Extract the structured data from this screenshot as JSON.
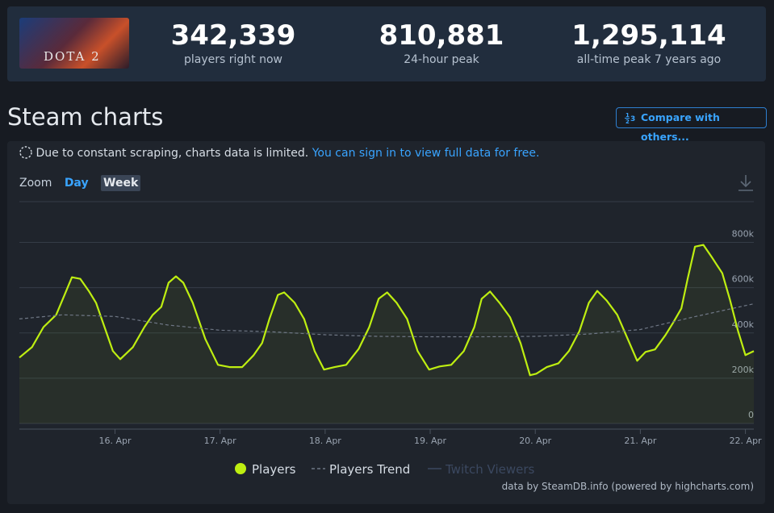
{
  "header": {
    "logo_text": "DOTA 2",
    "stats": [
      {
        "value": "342,339",
        "label": "players right now"
      },
      {
        "value": "810,881",
        "label": "24-hour peak"
      },
      {
        "value": "1,295,114",
        "label": "all-time peak 7 years ago"
      }
    ]
  },
  "section_title": "Steam charts",
  "compare_button": "Compare with others...",
  "notice": {
    "text": "Due to constant scraping, charts data is limited.",
    "link": "You can sign in to view full data for free."
  },
  "zoom": {
    "label": "Zoom",
    "options": [
      "Day",
      "Week"
    ]
  },
  "credit": "data by SteamDB.info (powered by highcharts.com)",
  "chart_data": {
    "type": "line",
    "xlim": [
      15.09,
      22.08
    ],
    "xticks": [
      {
        "value": 16,
        "label": "16. Apr"
      },
      {
        "value": 17,
        "label": "17. Apr"
      },
      {
        "value": 18,
        "label": "18. Apr"
      },
      {
        "value": 19,
        "label": "19. Apr"
      },
      {
        "value": 20,
        "label": "20. Apr"
      },
      {
        "value": 21,
        "label": "21. Apr"
      },
      {
        "value": 22,
        "label": "22. Apr"
      }
    ],
    "ylim": [
      0,
      980000
    ],
    "yticks": [
      0,
      {
        "value": 200000,
        "label": "200k"
      },
      {
        "value": 400000,
        "label": "400k"
      },
      {
        "value": 600000,
        "label": "600k"
      },
      {
        "value": 800000,
        "label": "800k"
      }
    ],
    "grid": true,
    "series": [
      {
        "name": "Players",
        "color": "#beee11",
        "x": [
          15.09,
          15.21,
          15.32,
          15.44,
          15.52,
          15.59,
          15.67,
          15.75,
          15.82,
          15.9,
          15.98,
          16.05,
          16.17,
          16.28,
          16.36,
          16.44,
          16.51,
          16.58,
          16.65,
          16.74,
          16.86,
          16.98,
          17.09,
          17.21,
          17.32,
          17.4,
          17.47,
          17.55,
          17.61,
          17.71,
          17.8,
          17.9,
          17.99,
          18.09,
          18.2,
          18.32,
          18.42,
          18.51,
          18.59,
          18.68,
          18.78,
          18.88,
          18.99,
          19.09,
          19.2,
          19.32,
          19.42,
          19.49,
          19.57,
          19.66,
          19.76,
          19.86,
          19.95,
          20.01,
          20.11,
          20.22,
          20.32,
          20.42,
          20.51,
          20.59,
          20.68,
          20.78,
          20.88,
          20.97,
          21.05,
          21.14,
          21.24,
          21.31,
          21.39,
          21.45,
          21.52,
          21.6,
          21.68,
          21.78,
          21.85,
          21.93,
          22.0,
          22.08
        ],
        "values": [
          291000,
          337000,
          426000,
          480000,
          568000,
          646000,
          639000,
          586000,
          533000,
          426000,
          320000,
          284000,
          337000,
          426000,
          480000,
          515000,
          622000,
          650000,
          622000,
          533000,
          373000,
          259000,
          249000,
          249000,
          302000,
          355000,
          462000,
          568000,
          579000,
          533000,
          462000,
          320000,
          238000,
          249000,
          259000,
          330000,
          426000,
          551000,
          579000,
          533000,
          462000,
          320000,
          238000,
          252000,
          259000,
          320000,
          426000,
          551000,
          583000,
          533000,
          469000,
          355000,
          213000,
          220000,
          249000,
          266000,
          320000,
          408000,
          533000,
          586000,
          543000,
          480000,
          373000,
          277000,
          316000,
          327000,
          391000,
          444000,
          508000,
          639000,
          781000,
          789000,
          735000,
          664000,
          551000,
          408000,
          302000,
          320000
        ]
      },
      {
        "name": "Players Trend",
        "color": "#6f7785",
        "dashed": true,
        "x": [
          15.09,
          15.5,
          16,
          16.5,
          17,
          17.5,
          18,
          18.5,
          19,
          19.5,
          20,
          20.5,
          21,
          21.5,
          22.08
        ],
        "values": [
          462000,
          480000,
          473000,
          435000,
          412000,
          405000,
          392000,
          385000,
          383000,
          383000,
          385000,
          395000,
          415000,
          470000,
          529000
        ]
      },
      {
        "name": "Twitch Viewers",
        "color": "#3b4860",
        "visible": false
      }
    ]
  }
}
